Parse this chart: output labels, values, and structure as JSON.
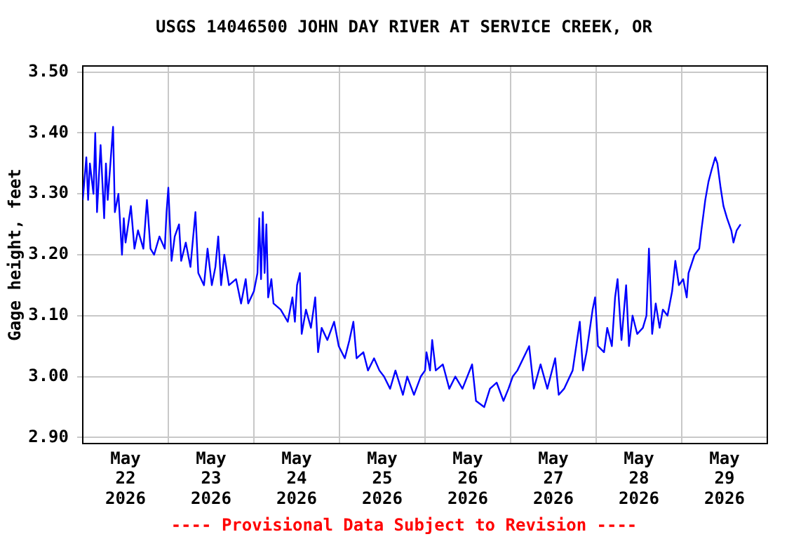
{
  "chart_data": {
    "type": "line",
    "title": "USGS 14046500 JOHN DAY RIVER AT SERVICE CREEK, OR",
    "ylabel": "Gage height, feet",
    "annotations": [
      "---- Provisional Data Subject to Revision ----"
    ],
    "xlim": [
      "2026-05-22T00:00",
      "2026-05-30T00:00"
    ],
    "xticks": [
      {
        "value": "2026-05-22T12:00",
        "label": "May 22 2026"
      },
      {
        "value": "2026-05-23T00:00",
        "label": null
      },
      {
        "value": "2026-05-23T12:00",
        "label": "May 23 2026"
      },
      {
        "value": "2026-05-24T00:00",
        "label": null
      },
      {
        "value": "2026-05-24T12:00",
        "label": "May 24 2026"
      },
      {
        "value": "2026-05-25T00:00",
        "label": null
      },
      {
        "value": "2026-05-25T12:00",
        "label": "May 25 2026"
      },
      {
        "value": "2026-05-26T00:00",
        "label": null
      },
      {
        "value": "2026-05-26T12:00",
        "label": "May 26 2026"
      },
      {
        "value": "2026-05-27T00:00",
        "label": null
      },
      {
        "value": "2026-05-27T12:00",
        "label": "May 27 2026"
      },
      {
        "value": "2026-05-28T00:00",
        "label": null
      },
      {
        "value": "2026-05-28T12:00",
        "label": "May 28 2026"
      },
      {
        "value": "2026-05-29T00:00",
        "label": null
      },
      {
        "value": "2026-05-29T12:00",
        "label": "May 29 2026"
      }
    ],
    "ylim": [
      2.89,
      3.51
    ],
    "yticks": [
      {
        "value": 2.9,
        "label": "2.90"
      },
      {
        "value": 3.0,
        "label": "3.00"
      },
      {
        "value": 3.1,
        "label": "3.10"
      },
      {
        "value": 3.2,
        "label": "3.20"
      },
      {
        "value": 3.3,
        "label": "3.30"
      },
      {
        "value": 3.4,
        "label": "3.40"
      },
      {
        "value": 3.5,
        "label": "3.50"
      }
    ],
    "grid": true,
    "legend": false,
    "series": [
      {
        "color": "#0000ff",
        "x": [
          "2026-05-22T00:00",
          "2026-05-22T01:00",
          "2026-05-22T01:30",
          "2026-05-22T02:00",
          "2026-05-22T03:00",
          "2026-05-22T03:30",
          "2026-05-22T04:00",
          "2026-05-22T05:00",
          "2026-05-22T06:00",
          "2026-05-22T06:30",
          "2026-05-22T07:00",
          "2026-05-22T08:30",
          "2026-05-22T09:00",
          "2026-05-22T10:00",
          "2026-05-22T11:00",
          "2026-05-22T11:30",
          "2026-05-22T12:00",
          "2026-05-22T13:30",
          "2026-05-22T14:30",
          "2026-05-22T15:30",
          "2026-05-22T17:00",
          "2026-05-22T18:00",
          "2026-05-22T19:00",
          "2026-05-22T20:00",
          "2026-05-22T21:30",
          "2026-05-22T23:00",
          "2026-05-22T23:30",
          "2026-05-23T00:00",
          "2026-05-23T00:54",
          "2026-05-23T01:48",
          "2026-05-23T03:00",
          "2026-05-23T03:36",
          "2026-05-23T04:54",
          "2026-05-23T06:12",
          "2026-05-23T07:36",
          "2026-05-23T08:24",
          "2026-05-23T10:00",
          "2026-05-23T11:00",
          "2026-05-23T12:12",
          "2026-05-23T13:12",
          "2026-05-23T14:00",
          "2026-05-23T14:48",
          "2026-05-23T15:42",
          "2026-05-23T17:00",
          "2026-05-23T19:00",
          "2026-05-23T20:24",
          "2026-05-23T21:42",
          "2026-05-23T22:24",
          "2026-05-24T00:00",
          "2026-05-24T01:00",
          "2026-05-24T01:30",
          "2026-05-24T02:00",
          "2026-05-24T02:30",
          "2026-05-24T03:00",
          "2026-05-24T03:30",
          "2026-05-24T04:00",
          "2026-05-24T04:54",
          "2026-05-24T05:30",
          "2026-05-24T07:30",
          "2026-05-24T09:30",
          "2026-05-24T10:48",
          "2026-05-24T11:30",
          "2026-05-24T12:06",
          "2026-05-24T12:54",
          "2026-05-24T13:24",
          "2026-05-24T14:36",
          "2026-05-24T16:00",
          "2026-05-24T17:12",
          "2026-05-24T18:00",
          "2026-05-24T19:00",
          "2026-05-24T20:36",
          "2026-05-24T22:30",
          "2026-05-24T23:48",
          "2026-05-25T01:30",
          "2026-05-25T02:48",
          "2026-05-25T03:54",
          "2026-05-25T04:48",
          "2026-05-25T06:42",
          "2026-05-25T08:00",
          "2026-05-25T09:42",
          "2026-05-25T11:12",
          "2026-05-25T12:30",
          "2026-05-25T14:12",
          "2026-05-25T15:42",
          "2026-05-25T17:48",
          "2026-05-25T19:00",
          "2026-05-25T20:54",
          "2026-05-25T22:48",
          "2026-05-26T00:00",
          "2026-05-26T00:24",
          "2026-05-26T01:24",
          "2026-05-26T02:00",
          "2026-05-26T03:00",
          "2026-05-26T05:00",
          "2026-05-26T06:48",
          "2026-05-26T08:30",
          "2026-05-26T10:30",
          "2026-05-26T13:12",
          "2026-05-26T14:18",
          "2026-05-26T16:36",
          "2026-05-26T18:12",
          "2026-05-26T20:06",
          "2026-05-26T22:00",
          "2026-05-26T23:24",
          "2026-05-27T00:36",
          "2026-05-27T01:54",
          "2026-05-27T05:12",
          "2026-05-27T06:30",
          "2026-05-27T08:24",
          "2026-05-27T10:18",
          "2026-05-27T12:30",
          "2026-05-27T13:30",
          "2026-05-27T15:00",
          "2026-05-27T17:24",
          "2026-05-27T19:24",
          "2026-05-27T20:18",
          "2026-05-27T21:18",
          "2026-05-27T23:00",
          "2026-05-27T23:42",
          "2026-05-28T00:30",
          "2026-05-28T02:12",
          "2026-05-28T03:06",
          "2026-05-28T04:24",
          "2026-05-28T05:18",
          "2026-05-28T06:00",
          "2026-05-28T07:06",
          "2026-05-28T08:24",
          "2026-05-28T09:12",
          "2026-05-28T10:12",
          "2026-05-28T11:30",
          "2026-05-28T13:06",
          "2026-05-28T14:06",
          "2026-05-28T14:48",
          "2026-05-28T15:42",
          "2026-05-28T16:42",
          "2026-05-28T17:48",
          "2026-05-28T18:42",
          "2026-05-28T20:00",
          "2026-05-28T21:18",
          "2026-05-28T22:12",
          "2026-05-28T23:12",
          "2026-05-29T00:24",
          "2026-05-29T01:24",
          "2026-05-29T01:54",
          "2026-05-29T03:36",
          "2026-05-29T04:54",
          "2026-05-29T05:30",
          "2026-05-29T06:36",
          "2026-05-29T07:30",
          "2026-05-29T08:24",
          "2026-05-29T09:24",
          "2026-05-29T10:00",
          "2026-05-29T10:54",
          "2026-05-29T11:42",
          "2026-05-29T12:42",
          "2026-05-29T13:54",
          "2026-05-29T14:30",
          "2026-05-29T15:24",
          "2026-05-29T16:30"
        ],
        "values": [
          3.29,
          3.36,
          3.29,
          3.35,
          3.3,
          3.4,
          3.27,
          3.38,
          3.26,
          3.35,
          3.29,
          3.41,
          3.27,
          3.3,
          3.2,
          3.26,
          3.22,
          3.28,
          3.21,
          3.24,
          3.21,
          3.29,
          3.21,
          3.2,
          3.23,
          3.21,
          3.27,
          3.31,
          3.19,
          3.23,
          3.25,
          3.19,
          3.22,
          3.18,
          3.27,
          3.17,
          3.15,
          3.21,
          3.15,
          3.18,
          3.23,
          3.15,
          3.2,
          3.15,
          3.16,
          3.12,
          3.16,
          3.12,
          3.14,
          3.17,
          3.26,
          3.16,
          3.27,
          3.17,
          3.25,
          3.13,
          3.16,
          3.12,
          3.11,
          3.09,
          3.13,
          3.09,
          3.15,
          3.17,
          3.07,
          3.11,
          3.08,
          3.13,
          3.04,
          3.08,
          3.06,
          3.09,
          3.05,
          3.03,
          3.06,
          3.09,
          3.03,
          3.04,
          3.01,
          3.03,
          3.01,
          3.0,
          2.98,
          3.01,
          2.97,
          3.0,
          2.97,
          3.0,
          3.01,
          3.04,
          3.01,
          3.06,
          3.01,
          3.02,
          2.98,
          3.0,
          2.98,
          3.02,
          2.96,
          2.95,
          2.98,
          2.99,
          2.96,
          2.98,
          3.0,
          3.01,
          3.05,
          2.98,
          3.02,
          2.98,
          3.03,
          2.97,
          2.98,
          3.01,
          3.09,
          3.01,
          3.04,
          3.11,
          3.13,
          3.05,
          3.04,
          3.08,
          3.05,
          3.13,
          3.16,
          3.06,
          3.15,
          3.05,
          3.1,
          3.07,
          3.08,
          3.1,
          3.21,
          3.07,
          3.12,
          3.08,
          3.11,
          3.1,
          3.14,
          3.19,
          3.15,
          3.16,
          3.13,
          3.17,
          3.2,
          3.21,
          3.24,
          3.29,
          3.32,
          3.34,
          3.36,
          3.35,
          3.31,
          3.28,
          3.26,
          3.24,
          3.22,
          3.24,
          3.25
        ]
      }
    ]
  }
}
